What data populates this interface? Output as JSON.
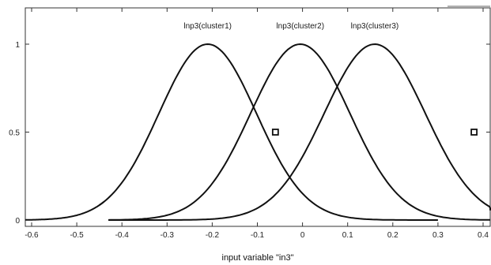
{
  "chart_data": {
    "type": "line",
    "title": "",
    "xlabel": "input variable \"in3\"",
    "ylabel": "",
    "xlim": [
      -0.62,
      0.43
    ],
    "ylim": [
      0,
      1.05
    ],
    "x_ticks": [
      -0.6,
      -0.5,
      -0.4,
      -0.3,
      -0.2,
      -0.1,
      0,
      0.1,
      0.2,
      0.3,
      0.4
    ],
    "x_tick_labels": [
      "-0.6",
      "-0.5",
      "-0.4",
      "-0.3",
      "-0.2",
      "-0.1",
      "0",
      "0.1",
      "0.2",
      "0.3",
      "0.4"
    ],
    "y_ticks": [
      0,
      0.5,
      1
    ],
    "y_tick_labels": [
      "0",
      "0.5",
      "1"
    ],
    "grid": false,
    "series": [
      {
        "name": "lnp3(cluster1)",
        "mf": "gaussmf",
        "center": -0.21,
        "sigma": 0.108,
        "xmin": -0.45,
        "xmax": 0.3
      },
      {
        "name": "lnp3(cluster2)",
        "mf": "gaussmf",
        "center": -0.005,
        "sigma": 0.11,
        "xmin": -0.43,
        "xmax": 0.43
      },
      {
        "name": "lnp3(cluster3)",
        "mf": "gaussmf",
        "center": 0.16,
        "sigma": 0.112,
        "xmin": -0.43,
        "xmax": 0.43
      }
    ],
    "left_tail": {
      "xmin": -0.62,
      "xmax": -0.44,
      "center": -0.21,
      "sigma": 0.108
    },
    "markers": [
      {
        "x": -0.06,
        "y": 0.5
      },
      {
        "x": 0.38,
        "y": 0.5
      }
    ]
  }
}
